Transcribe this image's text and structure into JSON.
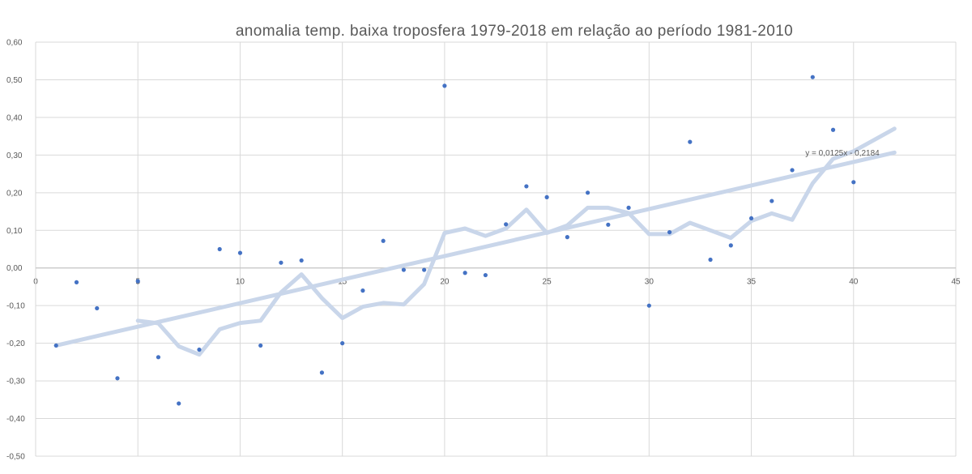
{
  "chart_data": {
    "type": "scatter",
    "title": "anomalia temp. baixa troposfera 1979-2018 em relação ao período 1981-2010",
    "xlim": [
      0,
      45
    ],
    "ylim": [
      -0.5,
      0.6
    ],
    "x_ticks": [
      0,
      5,
      10,
      15,
      20,
      25,
      30,
      35,
      40,
      45
    ],
    "x_tick_labels": [
      "0",
      "5",
      "10",
      "15",
      "20",
      "25",
      "30",
      "35",
      "40",
      "45"
    ],
    "y_ticks": [
      -0.5,
      -0.4,
      -0.3,
      -0.2,
      -0.1,
      0.0,
      0.1,
      0.2,
      0.3,
      0.4,
      0.5,
      0.6
    ],
    "y_tick_labels": [
      "-0,50",
      "-0,40",
      "-0,30",
      "-0,20",
      "-0,10",
      "0,00",
      "0,10",
      "0,20",
      "0,30",
      "0,40",
      "0,50",
      "0,60"
    ],
    "grid": "vertical and horizontal",
    "legend": "none",
    "series": [
      {
        "kind": "points",
        "color": "#4472c4",
        "x": [
          1,
          2,
          3,
          4,
          5,
          6,
          7,
          8,
          9,
          10,
          11,
          12,
          13,
          14,
          15,
          16,
          17,
          18,
          19,
          20,
          21,
          22,
          23,
          24,
          25,
          26,
          27,
          28,
          29,
          30,
          31,
          32,
          33,
          34,
          35,
          36,
          37,
          38,
          39,
          40
        ],
        "y": [
          -0.206,
          -0.038,
          -0.107,
          -0.293,
          -0.035,
          -0.237,
          -0.36,
          -0.217,
          0.05,
          0.04,
          -0.206,
          0.014,
          0.02,
          -0.278,
          -0.2,
          -0.06,
          0.072,
          -0.005,
          -0.005,
          0.484,
          -0.013,
          -0.019,
          0.116,
          0.217,
          0.188,
          0.082,
          0.2,
          0.115,
          0.16,
          -0.1,
          0.095,
          0.335,
          0.022,
          0.06,
          0.132,
          0.178,
          0.26,
          0.507,
          0.367,
          0.228
        ]
      },
      {
        "kind": "moving-average",
        "color": "#c9d6ea",
        "x": [
          5,
          6,
          7,
          8,
          9,
          10,
          11,
          12,
          13,
          14,
          15,
          16,
          17,
          18,
          19,
          20,
          21,
          22,
          23,
          24,
          25,
          26,
          27,
          28,
          29,
          30,
          31,
          32,
          33,
          34,
          35,
          36,
          37,
          38,
          39,
          40,
          41,
          42
        ],
        "y": [
          -0.14,
          -0.147,
          -0.208,
          -0.23,
          -0.163,
          -0.146,
          -0.14,
          -0.065,
          -0.017,
          -0.08,
          -0.133,
          -0.103,
          -0.093,
          -0.097,
          -0.043,
          0.093,
          0.105,
          0.085,
          0.105,
          0.155,
          0.093,
          0.113,
          0.16,
          0.16,
          0.146,
          0.09,
          0.09,
          0.12,
          0.1,
          0.08,
          0.125,
          0.145,
          0.128,
          0.225,
          0.29,
          0.31,
          0.34,
          0.37
        ]
      },
      {
        "kind": "trendline",
        "color": "#c9d6ea",
        "slope": 0.0125,
        "intercept": -0.2184,
        "x_range": [
          1,
          42
        ],
        "equation_label": "y = 0,0125x - 0,2184"
      }
    ]
  }
}
